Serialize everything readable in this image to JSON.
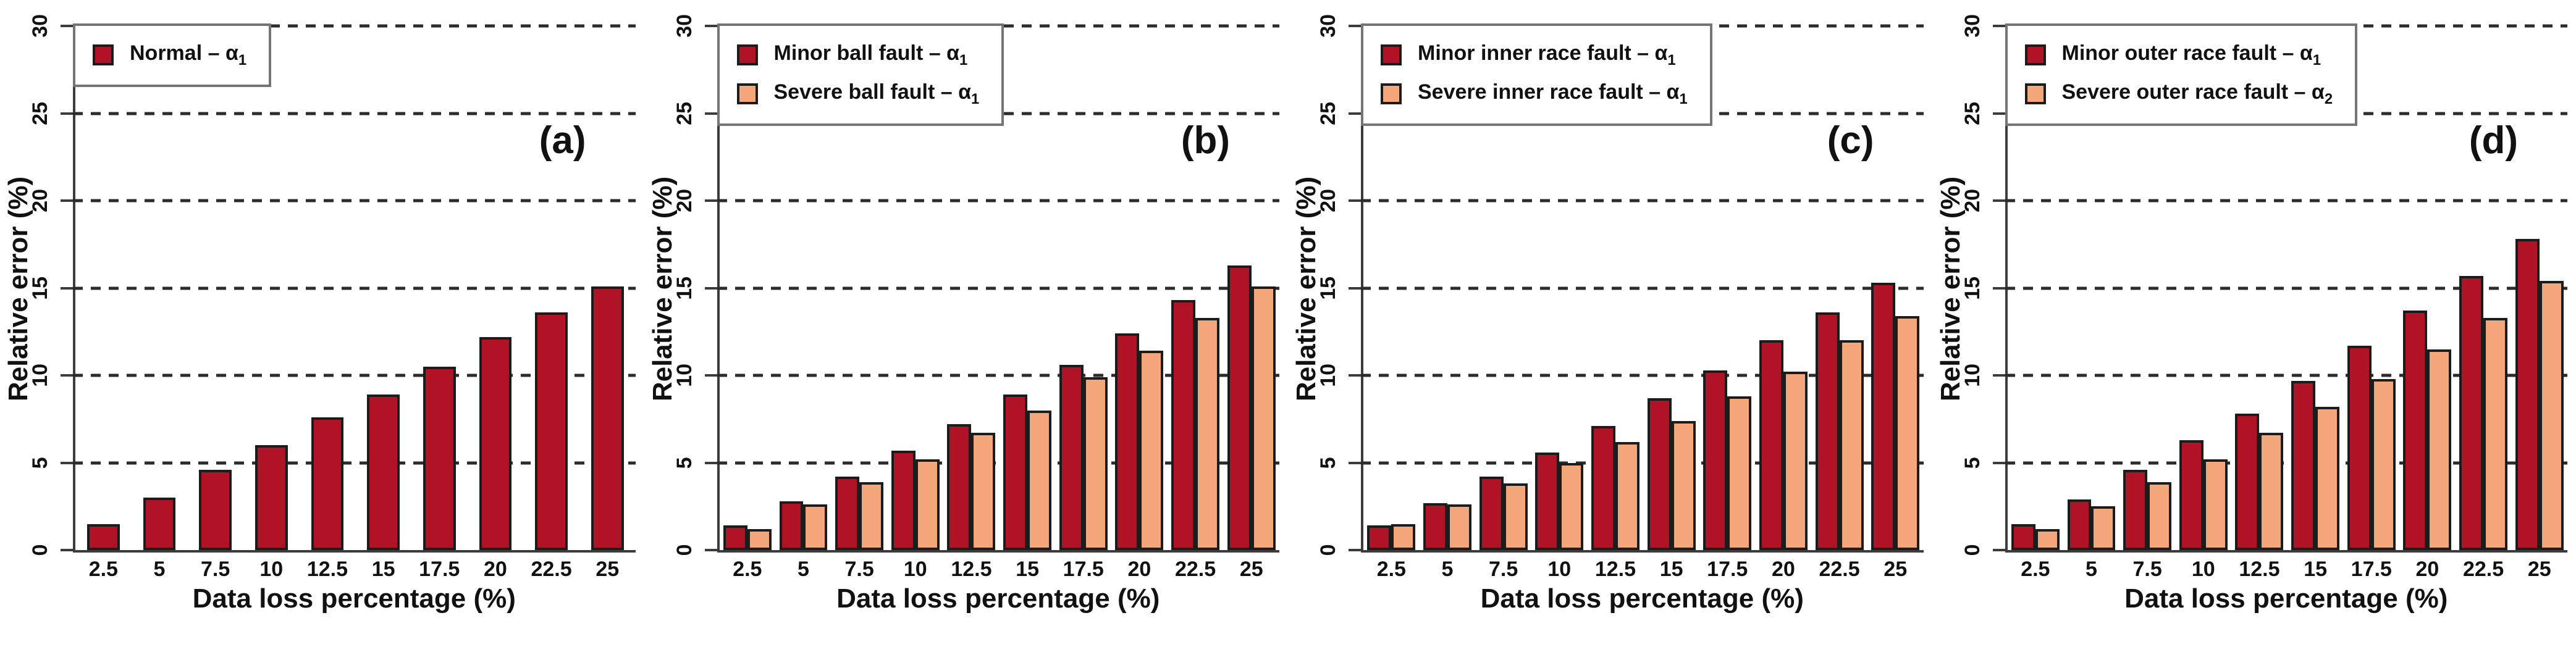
{
  "figure": {
    "ylabel": "Relative error (%)",
    "xlabel": "Data loss percentage (%)"
  },
  "colors": {
    "minor_fault_bar": "#B01226",
    "severe_fault_bar": "#F5A77C",
    "bar_outline": "#1c1c1c",
    "gridline": "#2b2b2b",
    "axis": "#3c3c3c",
    "legend_border": "#757575",
    "background": "#ffffff"
  },
  "chart_data": [
    {
      "type": "bar",
      "panel_label": "(a)",
      "title": "",
      "xlabel": "Data loss percentage (%)",
      "ylabel": "Relative error (%)",
      "ylim": [
        0,
        30
      ],
      "yticks": [
        0,
        5,
        10,
        15,
        20,
        25,
        30
      ],
      "grid": "horizontal-dashed",
      "legend_position": "top-left",
      "categories": [
        "2.5",
        "5",
        "7.5",
        "10",
        "12.5",
        "15",
        "17.5",
        "20",
        "22.5",
        "25"
      ],
      "series": [
        {
          "name": "Normal – α₁",
          "label_main": "Normal – α",
          "label_sub": "1",
          "color": "#B01226",
          "values": [
            1.5,
            3.0,
            4.6,
            6.0,
            7.6,
            8.9,
            10.5,
            12.2,
            13.6,
            15.1
          ]
        }
      ]
    },
    {
      "type": "bar",
      "panel_label": "(b)",
      "title": "",
      "xlabel": "Data loss percentage (%)",
      "ylabel": "Relative error (%)",
      "ylim": [
        0,
        30
      ],
      "yticks": [
        0,
        5,
        10,
        15,
        20,
        25,
        30
      ],
      "grid": "horizontal-dashed",
      "legend_position": "top-left",
      "categories": [
        "2.5",
        "5",
        "7.5",
        "10",
        "12.5",
        "15",
        "17.5",
        "20",
        "22.5",
        "25"
      ],
      "series": [
        {
          "name": "Minor ball fault – α₁",
          "label_main": "Minor ball fault – α",
          "label_sub": "1",
          "color": "#B01226",
          "values": [
            1.4,
            2.8,
            4.2,
            5.7,
            7.2,
            8.9,
            10.6,
            12.4,
            14.3,
            16.3
          ]
        },
        {
          "name": "Severe ball fault – α₁",
          "label_main": "Severe ball fault – α",
          "label_sub": "1",
          "color": "#F5A77C",
          "values": [
            1.2,
            2.6,
            3.9,
            5.2,
            6.7,
            8.0,
            9.9,
            11.4,
            13.3,
            15.1
          ]
        }
      ]
    },
    {
      "type": "bar",
      "panel_label": "(c)",
      "title": "",
      "xlabel": "Data loss percentage (%)",
      "ylabel": "Relative error (%)",
      "ylim": [
        0,
        30
      ],
      "yticks": [
        0,
        5,
        10,
        15,
        20,
        25,
        30
      ],
      "grid": "horizontal-dashed",
      "legend_position": "top-left",
      "categories": [
        "2.5",
        "5",
        "7.5",
        "10",
        "12.5",
        "15",
        "17.5",
        "20",
        "22.5",
        "25"
      ],
      "series": [
        {
          "name": "Minor inner race fault – α₁",
          "label_main": "Minor inner race fault – α",
          "label_sub": "1",
          "color": "#B01226",
          "values": [
            1.4,
            2.7,
            4.2,
            5.6,
            7.1,
            8.7,
            10.3,
            12.0,
            13.6,
            15.3
          ]
        },
        {
          "name": "Severe inner race fault – α₁",
          "label_main": "Severe inner race fault – α",
          "label_sub": "1",
          "color": "#F5A77C",
          "values": [
            1.5,
            2.6,
            3.8,
            5.0,
            6.2,
            7.4,
            8.8,
            10.2,
            12.0,
            13.4
          ]
        }
      ]
    },
    {
      "type": "bar",
      "panel_label": "(d)",
      "title": "",
      "xlabel": "Data loss percentage (%)",
      "ylabel": "Relative error (%)",
      "ylim": [
        0,
        30
      ],
      "yticks": [
        0,
        5,
        10,
        15,
        20,
        25,
        30
      ],
      "grid": "horizontal-dashed",
      "legend_position": "top-left",
      "categories": [
        "2.5",
        "5",
        "7.5",
        "10",
        "12.5",
        "15",
        "17.5",
        "20",
        "22.5",
        "25"
      ],
      "series": [
        {
          "name": "Minor outer race fault – α₁",
          "label_main": "Minor outer race fault – α",
          "label_sub": "1",
          "color": "#B01226",
          "values": [
            1.5,
            2.9,
            4.6,
            6.3,
            7.8,
            9.7,
            11.7,
            13.7,
            15.7,
            17.8
          ]
        },
        {
          "name": "Severe outer race fault – α₂",
          "label_main": "Severe outer race fault – α",
          "label_sub": "2",
          "color": "#F5A77C",
          "values": [
            1.2,
            2.5,
            3.9,
            5.2,
            6.7,
            8.2,
            9.8,
            11.5,
            13.3,
            15.4
          ]
        }
      ]
    }
  ]
}
